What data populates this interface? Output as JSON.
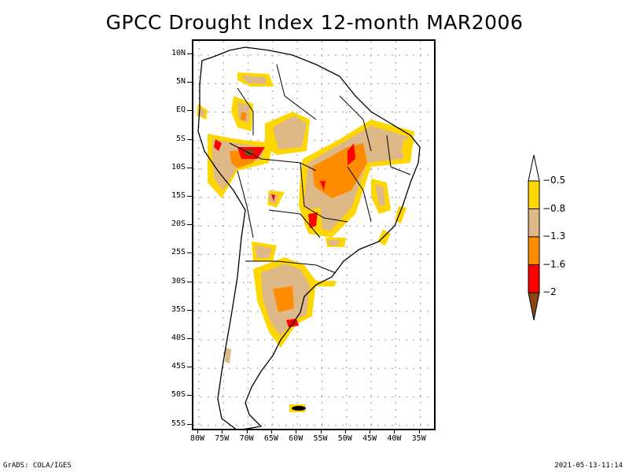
{
  "title": "GPCC Drought Index 12-month MAR2006",
  "map": {
    "region": "South America",
    "lat_labels": [
      "10N",
      "5N",
      "EQ",
      "5S",
      "10S",
      "15S",
      "20S",
      "25S",
      "30S",
      "35S",
      "40S",
      "45S",
      "50S",
      "55S"
    ],
    "lon_labels": [
      "80W",
      "75W",
      "70W",
      "65W",
      "60W",
      "55W",
      "50W",
      "45W",
      "40W",
      "35W"
    ],
    "lat_range": [
      12,
      -56
    ],
    "lon_range": [
      -81,
      -33
    ],
    "grid": "dotted"
  },
  "legend": {
    "levels": [
      {
        "label": "-0.5",
        "color": "#ffffff"
      },
      {
        "label": "-0.8",
        "color": "#ffd700"
      },
      {
        "label": "-1.3",
        "color": "#deb887"
      },
      {
        "label": "-1.6",
        "color": "#ff8c00"
      },
      {
        "label": "-2",
        "color": "#ff0000"
      }
    ],
    "bins": [
      {
        "range": "> -0.5",
        "color": "#ffffff"
      },
      {
        "range": "-0.8 to -0.5",
        "color": "#ffd700"
      },
      {
        "range": "-1.3 to -0.8",
        "color": "#deb887"
      },
      {
        "range": "-1.6 to -1.3",
        "color": "#ff8c00"
      },
      {
        "range": "-2 to -1.6",
        "color": "#ff0000"
      },
      {
        "range": "< -2",
        "color": "#8b4513"
      }
    ]
  },
  "footer": {
    "left": "GrADS: COLA/IGES",
    "right": "2021-05-13-11:14"
  }
}
